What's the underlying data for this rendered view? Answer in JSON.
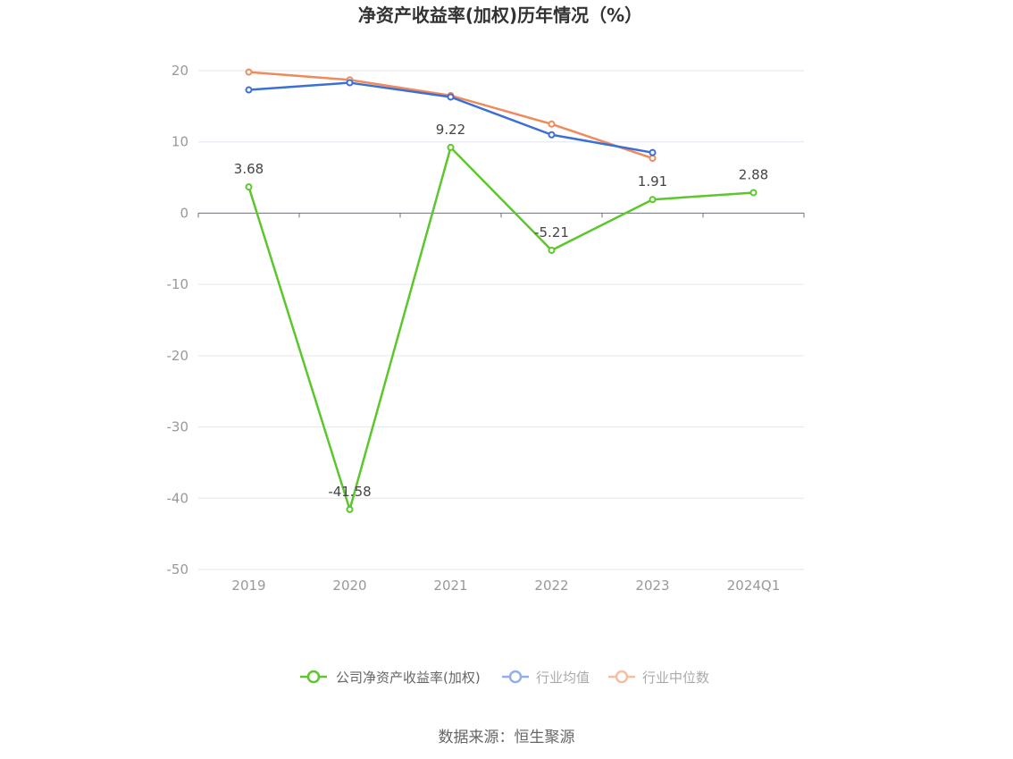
{
  "chart_data": {
    "type": "line",
    "title": "净资产收益率(加权)历年情况（%）",
    "categories": [
      "2019",
      "2020",
      "2021",
      "2022",
      "2023",
      "2024Q1"
    ],
    "ylim": [
      -50,
      20
    ],
    "yticks": [
      "20",
      "10",
      "0",
      "-10",
      "-20",
      "-30",
      "-40",
      "-50"
    ],
    "grid": true,
    "legend_position": "bottom",
    "series": [
      {
        "name": "公司净资产收益率(加权)",
        "color": "#5bc72c",
        "values": [
          3.68,
          -41.58,
          9.22,
          -5.21,
          1.91,
          2.88
        ],
        "labels": [
          "3.68",
          "-41.58",
          "9.22",
          "-5.21",
          "1.91",
          "2.88"
        ]
      },
      {
        "name": "行业均值",
        "color": "#3b6fd8",
        "values": [
          17.3,
          18.3,
          16.3,
          11.0,
          8.5,
          null
        ]
      },
      {
        "name": "行业中位数",
        "color": "#ef8a5a",
        "values": [
          19.8,
          18.7,
          16.5,
          12.5,
          7.7,
          null
        ]
      }
    ],
    "source": "数据来源：恒生聚源"
  }
}
